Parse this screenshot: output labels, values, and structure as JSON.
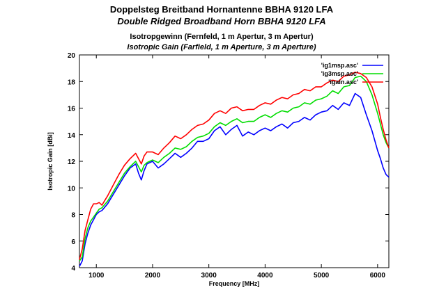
{
  "chart_data": {
    "type": "line",
    "title": "Doppelsteg Breitband Hornantenne BBHA 9120 LFA",
    "subtitle": "Double Ridged Broadband Horn BBHA 9120 LFA",
    "title2": "Isotropgewinn (Fernfeld, 1 m Apertur, 3 m Apertur)",
    "subtitle2": "Isotropic Gain (Farfield, 1 m Aperture, 3 m Aperture)",
    "xlabel": "Frequency [MHz]",
    "ylabel": "Isotropic Gain [dBi]",
    "xlim": [
      700,
      6200
    ],
    "ylim": [
      4,
      20
    ],
    "xticks": [
      1000,
      2000,
      3000,
      4000,
      5000,
      6000
    ],
    "yticks": [
      4,
      6,
      8,
      10,
      12,
      14,
      16,
      18,
      20
    ],
    "legend_position": "top-right",
    "series": [
      {
        "name": "'ig1msp.asc'",
        "color": "#0000ff",
        "x": [
          700,
          750,
          800,
          850,
          900,
          950,
          1000,
          1050,
          1100,
          1200,
          1300,
          1400,
          1500,
          1600,
          1700,
          1750,
          1800,
          1850,
          1900,
          2000,
          2100,
          2200,
          2300,
          2400,
          2500,
          2600,
          2700,
          2800,
          2900,
          3000,
          3100,
          3200,
          3300,
          3400,
          3500,
          3600,
          3700,
          3800,
          3900,
          4000,
          4100,
          4200,
          4300,
          4400,
          4500,
          4600,
          4700,
          4800,
          4900,
          5000,
          5100,
          5200,
          5300,
          5400,
          5500,
          5600,
          5700,
          5800,
          5900,
          6000,
          6050,
          6100,
          6150,
          6200
        ],
        "values": [
          4.1,
          4.5,
          5.8,
          6.6,
          7.2,
          7.6,
          8.0,
          8.2,
          8.3,
          8.8,
          9.5,
          10.2,
          10.9,
          11.5,
          11.8,
          11.1,
          10.6,
          11.3,
          11.8,
          12.0,
          11.5,
          11.8,
          12.2,
          12.6,
          12.3,
          12.6,
          13.0,
          13.5,
          13.5,
          13.7,
          14.3,
          14.6,
          14.0,
          14.4,
          14.7,
          13.9,
          14.2,
          14.0,
          14.3,
          14.5,
          14.3,
          14.6,
          14.8,
          14.5,
          14.9,
          15.0,
          15.3,
          15.1,
          15.5,
          15.7,
          15.8,
          16.2,
          15.9,
          16.4,
          16.2,
          17.1,
          16.8,
          15.5,
          14.3,
          12.8,
          12.2,
          11.5,
          11.0,
          10.8
        ]
      },
      {
        "name": "'ig3msp.asc'",
        "color": "#00dd00",
        "x": [
          700,
          750,
          800,
          850,
          900,
          950,
          1000,
          1050,
          1100,
          1200,
          1300,
          1400,
          1500,
          1600,
          1700,
          1750,
          1800,
          1850,
          1900,
          2000,
          2100,
          2200,
          2300,
          2400,
          2500,
          2600,
          2700,
          2800,
          2900,
          3000,
          3100,
          3200,
          3300,
          3400,
          3500,
          3600,
          3700,
          3800,
          3900,
          4000,
          4100,
          4200,
          4300,
          4400,
          4500,
          4600,
          4700,
          4800,
          4900,
          5000,
          5100,
          5200,
          5300,
          5400,
          5500,
          5600,
          5700,
          5800,
          5900,
          6000,
          6050,
          6100,
          6150,
          6200
        ],
        "values": [
          4.5,
          4.8,
          6.2,
          7.0,
          7.5,
          7.8,
          8.1,
          8.4,
          8.5,
          9.0,
          9.7,
          10.4,
          11.1,
          11.6,
          12.0,
          11.6,
          11.2,
          11.7,
          11.9,
          12.1,
          11.9,
          12.3,
          12.6,
          13.0,
          12.9,
          13.1,
          13.5,
          13.8,
          13.9,
          14.1,
          14.6,
          14.9,
          14.7,
          15.0,
          15.2,
          14.9,
          15.0,
          15.0,
          15.3,
          15.5,
          15.3,
          15.6,
          15.8,
          15.7,
          16.0,
          16.1,
          16.4,
          16.3,
          16.6,
          16.7,
          16.9,
          17.3,
          17.1,
          17.6,
          17.7,
          18.3,
          18.4,
          18.0,
          17.0,
          15.6,
          14.8,
          14.0,
          13.4,
          13.0
        ]
      },
      {
        "name": "'igain.asc'",
        "color": "#ff0000",
        "x": [
          700,
          750,
          800,
          850,
          900,
          950,
          1000,
          1050,
          1100,
          1200,
          1300,
          1400,
          1500,
          1600,
          1700,
          1750,
          1800,
          1850,
          1900,
          2000,
          2100,
          2200,
          2300,
          2400,
          2500,
          2600,
          2700,
          2800,
          2900,
          3000,
          3100,
          3200,
          3300,
          3400,
          3500,
          3600,
          3700,
          3800,
          3900,
          4000,
          4100,
          4200,
          4300,
          4400,
          4500,
          4600,
          4700,
          4800,
          4900,
          5000,
          5100,
          5200,
          5300,
          5400,
          5500,
          5600,
          5700,
          5800,
          5900,
          6000,
          6050,
          6100,
          6150,
          6200
        ],
        "values": [
          4.6,
          5.4,
          6.8,
          7.6,
          8.4,
          8.8,
          8.8,
          8.9,
          8.7,
          9.4,
          10.2,
          11.0,
          11.7,
          12.2,
          12.6,
          12.2,
          11.8,
          12.4,
          12.7,
          12.7,
          12.5,
          13.0,
          13.4,
          13.9,
          13.7,
          14.0,
          14.4,
          14.7,
          14.8,
          15.1,
          15.6,
          15.8,
          15.6,
          16.0,
          16.1,
          15.8,
          15.9,
          15.9,
          16.2,
          16.4,
          16.3,
          16.6,
          16.8,
          16.7,
          17.0,
          17.1,
          17.4,
          17.3,
          17.6,
          17.6,
          17.9,
          18.1,
          18.0,
          18.4,
          18.5,
          18.7,
          18.6,
          18.3,
          17.6,
          16.3,
          15.3,
          14.4,
          13.6,
          13.0
        ]
      }
    ]
  }
}
